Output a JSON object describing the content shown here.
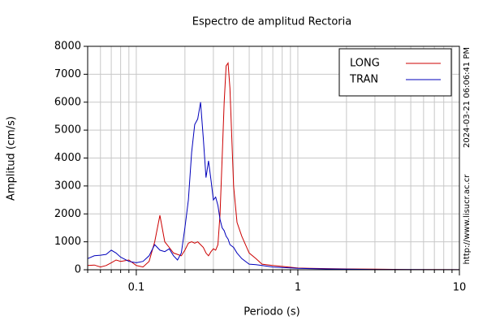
{
  "chart_data": {
    "type": "line",
    "title": "Espectro de amplitud Rectoria",
    "xlabel": "Periodo (s)",
    "ylabel": "Amplitud (cm/s)",
    "xscale": "log",
    "grid": true,
    "legend": "upper right",
    "xlim": [
      0.05,
      10
    ],
    "xticks": [
      0.1,
      1,
      10
    ],
    "xminorticks": [
      0.05,
      0.06,
      0.07,
      0.08,
      0.09,
      0.2,
      0.3,
      0.4,
      0.5,
      0.6,
      0.7,
      0.8,
      0.9,
      2,
      3,
      4,
      5,
      6,
      7,
      8,
      9
    ],
    "ylim": [
      0,
      8000
    ],
    "yticks": [
      0,
      1000,
      2000,
      3000,
      4000,
      5000,
      6000,
      7000,
      8000
    ],
    "annotations": [
      "2024-03-21 06:06:41 PM",
      "http://www.lisucr.ac.cr"
    ],
    "x": [
      0.05,
      0.055,
      0.06,
      0.065,
      0.07,
      0.075,
      0.08,
      0.09,
      0.1,
      0.11,
      0.12,
      0.13,
      0.14,
      0.15,
      0.16,
      0.17,
      0.18,
      0.19,
      0.2,
      0.21,
      0.22,
      0.23,
      0.24,
      0.25,
      0.26,
      0.27,
      0.28,
      0.29,
      0.3,
      0.31,
      0.32,
      0.33,
      0.34,
      0.35,
      0.36,
      0.37,
      0.38,
      0.4,
      0.42,
      0.45,
      0.5,
      0.55,
      0.6,
      0.7,
      0.8,
      1,
      1.2,
      1.5,
      2,
      3,
      5,
      7,
      10
    ],
    "series": [
      {
        "name": "LONG",
        "color": "#cc0000",
        "values": [
          150,
          170,
          100,
          150,
          250,
          350,
          300,
          350,
          150,
          100,
          300,
          1000,
          1950,
          1000,
          800,
          600,
          550,
          500,
          700,
          950,
          1000,
          950,
          1000,
          900,
          800,
          600,
          500,
          650,
          750,
          700,
          900,
          2000,
          4000,
          6000,
          7300,
          7400,
          6500,
          3000,
          1700,
          1200,
          600,
          400,
          200,
          150,
          120,
          60,
          50,
          40,
          30,
          20,
          10,
          5,
          3
        ]
      },
      {
        "name": "TRAN",
        "color": "#0000bb",
        "values": [
          400,
          500,
          520,
          550,
          700,
          600,
          450,
          300,
          250,
          300,
          500,
          900,
          700,
          650,
          750,
          500,
          350,
          600,
          1500,
          2500,
          4200,
          5200,
          5400,
          6000,
          4700,
          3300,
          3900,
          3200,
          2500,
          2600,
          2300,
          1800,
          1500,
          1400,
          1200,
          1100,
          900,
          800,
          600,
          400,
          200,
          180,
          150,
          100,
          80,
          50,
          40,
          30,
          20,
          10,
          5,
          3,
          2
        ]
      }
    ]
  }
}
